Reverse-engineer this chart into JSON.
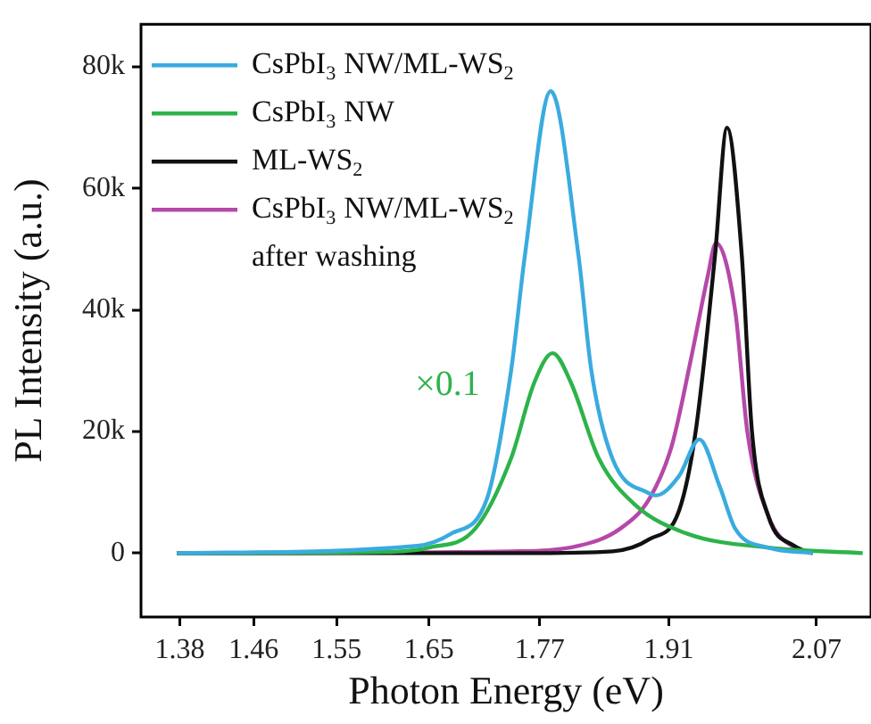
{
  "chart_data": {
    "type": "line",
    "xlabel": "Photon Energy (eV)",
    "ylabel": "PL Intensity (a.u.)",
    "xlim": [
      1.338,
      2.129
    ],
    "xticks": [
      1.38,
      1.46,
      1.55,
      1.65,
      1.77,
      1.91,
      2.07
    ],
    "ylim": [
      -10500,
      87000
    ],
    "yticks": [
      0,
      {
        "value": 20000,
        "label": "20k"
      },
      {
        "value": 40000,
        "label": "40k"
      },
      {
        "value": 60000,
        "label": "60k"
      },
      {
        "value": 80000,
        "label": "80k"
      }
    ],
    "grid": false,
    "legend": "top left",
    "marker": "none",
    "line_style": "solid",
    "annotations": [
      "×0.1"
    ],
    "series": [
      {
        "name": "CsPbI$_{3}$ NW/ML-WS$_{2}$",
        "color": "#3aabdf",
        "x": [
          1.377,
          1.637,
          1.674,
          1.713,
          1.739,
          1.754,
          1.782,
          1.812,
          1.826,
          1.849,
          1.889,
          1.896,
          1.921,
          1.943,
          1.965,
          1.982,
          2.018,
          2.066
        ],
        "values": [
          0,
          1200,
          3200,
          9000,
          30000,
          49000,
          76000,
          49000,
          30000,
          15500,
          9800,
          9500,
          12700,
          18700,
          11000,
          4000,
          900,
          0
        ]
      },
      {
        "name": "CsPbI$_{3}$ NW",
        "color": "#2db34a",
        "x": [
          1.377,
          1.6,
          1.649,
          1.7,
          1.739,
          1.764,
          1.784,
          1.804,
          1.834,
          1.873,
          1.93,
          2.018,
          2.12
        ],
        "values": [
          0,
          200,
          900,
          4000,
          15600,
          28000,
          32900,
          28000,
          15600,
          8000,
          3200,
          900,
          0
        ]
      },
      {
        "name": "ML-WS$_{2}$",
        "color": "#111111",
        "x": [
          1.377,
          1.75,
          1.849,
          1.889,
          1.921,
          1.939,
          1.96,
          1.973,
          1.989,
          2.0,
          2.018,
          2.046,
          2.066
        ],
        "values": [
          0,
          0,
          300,
          2300,
          7000,
          20000,
          49000,
          70000,
          49000,
          20000,
          6000,
          1200,
          0
        ]
      },
      {
        "name": "CsPbI$_{3}$ NW/ML-WS$_{2}$ after washing",
        "color": "#b548a8",
        "x": [
          1.377,
          1.739,
          1.812,
          1.857,
          1.889,
          1.913,
          1.934,
          1.952,
          1.961,
          1.982,
          1.995,
          2.018,
          2.046,
          2.066
        ],
        "values": [
          0,
          300,
          1200,
          4000,
          9000,
          17600,
          32000,
          45500,
          51000,
          39700,
          20000,
          6000,
          900,
          0
        ]
      }
    ]
  }
}
